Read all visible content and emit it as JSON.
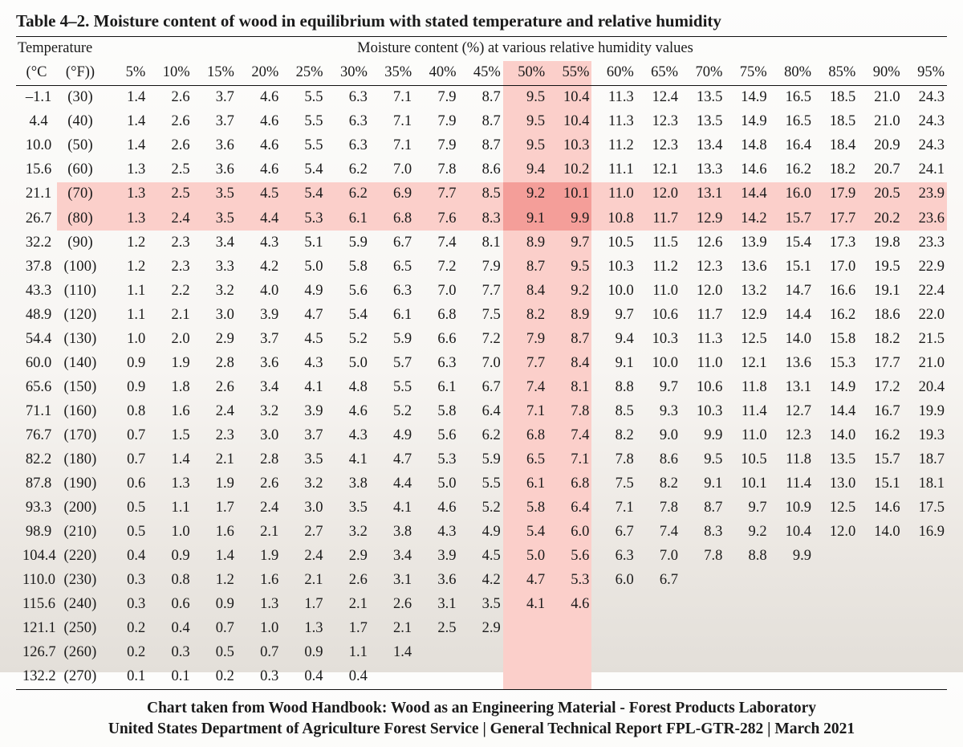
{
  "title": "Table 4–2. Moisture content of wood in equilibrium with stated temperature and relative humidity",
  "header_groups": {
    "temperature": "Temperature",
    "moisture": "Moisture content (%) at various relative humidity values"
  },
  "subheaders": {
    "c": "(°C",
    "f": "(°F))"
  },
  "humidity_labels": [
    "5%",
    "10%",
    "15%",
    "20%",
    "25%",
    "30%",
    "35%",
    "40%",
    "45%",
    "50%",
    "55%",
    "60%",
    "65%",
    "70%",
    "75%",
    "80%",
    "85%",
    "90%",
    "95%"
  ],
  "highlight": {
    "col_indices_light": [
      9,
      10
    ],
    "row_indices_light": [
      4,
      5
    ],
    "light_color": "#fbcfca",
    "dark_color": "#f49e99"
  },
  "rows": [
    {
      "c": "–1.1",
      "f": "(30)",
      "v": [
        "1.4",
        "2.6",
        "3.7",
        "4.6",
        "5.5",
        "6.3",
        "7.1",
        "7.9",
        "8.7",
        "9.5",
        "10.4",
        "11.3",
        "12.4",
        "13.5",
        "14.9",
        "16.5",
        "18.5",
        "21.0",
        "24.3"
      ]
    },
    {
      "c": "4.4",
      "f": "(40)",
      "v": [
        "1.4",
        "2.6",
        "3.7",
        "4.6",
        "5.5",
        "6.3",
        "7.1",
        "7.9",
        "8.7",
        "9.5",
        "10.4",
        "11.3",
        "12.3",
        "13.5",
        "14.9",
        "16.5",
        "18.5",
        "21.0",
        "24.3"
      ]
    },
    {
      "c": "10.0",
      "f": "(50)",
      "v": [
        "1.4",
        "2.6",
        "3.6",
        "4.6",
        "5.5",
        "6.3",
        "7.1",
        "7.9",
        "8.7",
        "9.5",
        "10.3",
        "11.2",
        "12.3",
        "13.4",
        "14.8",
        "16.4",
        "18.4",
        "20.9",
        "24.3"
      ]
    },
    {
      "c": "15.6",
      "f": "(60)",
      "v": [
        "1.3",
        "2.5",
        "3.6",
        "4.6",
        "5.4",
        "6.2",
        "7.0",
        "7.8",
        "8.6",
        "9.4",
        "10.2",
        "11.1",
        "12.1",
        "13.3",
        "14.6",
        "16.2",
        "18.2",
        "20.7",
        "24.1"
      ]
    },
    {
      "c": "21.1",
      "f": "(70)",
      "v": [
        "1.3",
        "2.5",
        "3.5",
        "4.5",
        "5.4",
        "6.2",
        "6.9",
        "7.7",
        "8.5",
        "9.2",
        "10.1",
        "11.0",
        "12.0",
        "13.1",
        "14.4",
        "16.0",
        "17.9",
        "20.5",
        "23.9"
      ]
    },
    {
      "c": "26.7",
      "f": "(80)",
      "v": [
        "1.3",
        "2.4",
        "3.5",
        "4.4",
        "5.3",
        "6.1",
        "6.8",
        "7.6",
        "8.3",
        "9.1",
        "9.9",
        "10.8",
        "11.7",
        "12.9",
        "14.2",
        "15.7",
        "17.7",
        "20.2",
        "23.6"
      ]
    },
    {
      "c": "32.2",
      "f": "(90)",
      "v": [
        "1.2",
        "2.3",
        "3.4",
        "4.3",
        "5.1",
        "5.9",
        "6.7",
        "7.4",
        "8.1",
        "8.9",
        "9.7",
        "10.5",
        "11.5",
        "12.6",
        "13.9",
        "15.4",
        "17.3",
        "19.8",
        "23.3"
      ]
    },
    {
      "c": "37.8",
      "f": "(100)",
      "v": [
        "1.2",
        "2.3",
        "3.3",
        "4.2",
        "5.0",
        "5.8",
        "6.5",
        "7.2",
        "7.9",
        "8.7",
        "9.5",
        "10.3",
        "11.2",
        "12.3",
        "13.6",
        "15.1",
        "17.0",
        "19.5",
        "22.9"
      ]
    },
    {
      "c": "43.3",
      "f": "(110)",
      "v": [
        "1.1",
        "2.2",
        "3.2",
        "4.0",
        "4.9",
        "5.6",
        "6.3",
        "7.0",
        "7.7",
        "8.4",
        "9.2",
        "10.0",
        "11.0",
        "12.0",
        "13.2",
        "14.7",
        "16.6",
        "19.1",
        "22.4"
      ]
    },
    {
      "c": "48.9",
      "f": "(120)",
      "v": [
        "1.1",
        "2.1",
        "3.0",
        "3.9",
        "4.7",
        "5.4",
        "6.1",
        "6.8",
        "7.5",
        "8.2",
        "8.9",
        "9.7",
        "10.6",
        "11.7",
        "12.9",
        "14.4",
        "16.2",
        "18.6",
        "22.0"
      ]
    },
    {
      "c": "54.4",
      "f": "(130)",
      "v": [
        "1.0",
        "2.0",
        "2.9",
        "3.7",
        "4.5",
        "5.2",
        "5.9",
        "6.6",
        "7.2",
        "7.9",
        "8.7",
        "9.4",
        "10.3",
        "11.3",
        "12.5",
        "14.0",
        "15.8",
        "18.2",
        "21.5"
      ]
    },
    {
      "c": "60.0",
      "f": "(140)",
      "v": [
        "0.9",
        "1.9",
        "2.8",
        "3.6",
        "4.3",
        "5.0",
        "5.7",
        "6.3",
        "7.0",
        "7.7",
        "8.4",
        "9.1",
        "10.0",
        "11.0",
        "12.1",
        "13.6",
        "15.3",
        "17.7",
        "21.0"
      ]
    },
    {
      "c": "65.6",
      "f": "(150)",
      "v": [
        "0.9",
        "1.8",
        "2.6",
        "3.4",
        "4.1",
        "4.8",
        "5.5",
        "6.1",
        "6.7",
        "7.4",
        "8.1",
        "8.8",
        "9.7",
        "10.6",
        "11.8",
        "13.1",
        "14.9",
        "17.2",
        "20.4"
      ]
    },
    {
      "c": "71.1",
      "f": "(160)",
      "v": [
        "0.8",
        "1.6",
        "2.4",
        "3.2",
        "3.9",
        "4.6",
        "5.2",
        "5.8",
        "6.4",
        "7.1",
        "7.8",
        "8.5",
        "9.3",
        "10.3",
        "11.4",
        "12.7",
        "14.4",
        "16.7",
        "19.9"
      ]
    },
    {
      "c": "76.7",
      "f": "(170)",
      "v": [
        "0.7",
        "1.5",
        "2.3",
        "3.0",
        "3.7",
        "4.3",
        "4.9",
        "5.6",
        "6.2",
        "6.8",
        "7.4",
        "8.2",
        "9.0",
        "9.9",
        "11.0",
        "12.3",
        "14.0",
        "16.2",
        "19.3"
      ]
    },
    {
      "c": "82.2",
      "f": "(180)",
      "v": [
        "0.7",
        "1.4",
        "2.1",
        "2.8",
        "3.5",
        "4.1",
        "4.7",
        "5.3",
        "5.9",
        "6.5",
        "7.1",
        "7.8",
        "8.6",
        "9.5",
        "10.5",
        "11.8",
        "13.5",
        "15.7",
        "18.7"
      ]
    },
    {
      "c": "87.8",
      "f": "(190)",
      "v": [
        "0.6",
        "1.3",
        "1.9",
        "2.6",
        "3.2",
        "3.8",
        "4.4",
        "5.0",
        "5.5",
        "6.1",
        "6.8",
        "7.5",
        "8.2",
        "9.1",
        "10.1",
        "11.4",
        "13.0",
        "15.1",
        "18.1"
      ]
    },
    {
      "c": "93.3",
      "f": "(200)",
      "v": [
        "0.5",
        "1.1",
        "1.7",
        "2.4",
        "3.0",
        "3.5",
        "4.1",
        "4.6",
        "5.2",
        "5.8",
        "6.4",
        "7.1",
        "7.8",
        "8.7",
        "9.7",
        "10.9",
        "12.5",
        "14.6",
        "17.5"
      ]
    },
    {
      "c": "98.9",
      "f": "(210)",
      "v": [
        "0.5",
        "1.0",
        "1.6",
        "2.1",
        "2.7",
        "3.2",
        "3.8",
        "4.3",
        "4.9",
        "5.4",
        "6.0",
        "6.7",
        "7.4",
        "8.3",
        "9.2",
        "10.4",
        "12.0",
        "14.0",
        "16.9"
      ]
    },
    {
      "c": "104.4",
      "f": "(220)",
      "v": [
        "0.4",
        "0.9",
        "1.4",
        "1.9",
        "2.4",
        "2.9",
        "3.4",
        "3.9",
        "4.5",
        "5.0",
        "5.6",
        "6.3",
        "7.0",
        "7.8",
        "8.8",
        "9.9",
        "",
        "",
        ""
      ]
    },
    {
      "c": "110.0",
      "f": "(230)",
      "v": [
        "0.3",
        "0.8",
        "1.2",
        "1.6",
        "2.1",
        "2.6",
        "3.1",
        "3.6",
        "4.2",
        "4.7",
        "5.3",
        "6.0",
        "6.7",
        "",
        "",
        "",
        "",
        "",
        ""
      ]
    },
    {
      "c": "115.6",
      "f": "(240)",
      "v": [
        "0.3",
        "0.6",
        "0.9",
        "1.3",
        "1.7",
        "2.1",
        "2.6",
        "3.1",
        "3.5",
        "4.1",
        "4.6",
        "",
        "",
        "",
        "",
        "",
        "",
        "",
        ""
      ]
    },
    {
      "c": "121.1",
      "f": "(250)",
      "v": [
        "0.2",
        "0.4",
        "0.7",
        "1.0",
        "1.3",
        "1.7",
        "2.1",
        "2.5",
        "2.9",
        "",
        "",
        "",
        "",
        "",
        "",
        "",
        "",
        "",
        ""
      ]
    },
    {
      "c": "126.7",
      "f": "(260)",
      "v": [
        "0.2",
        "0.3",
        "0.5",
        "0.7",
        "0.9",
        "1.1",
        "1.4",
        "",
        "",
        "",
        "",
        "",
        "",
        "",
        "",
        "",
        "",
        "",
        ""
      ]
    },
    {
      "c": "132.2",
      "f": "(270)",
      "v": [
        "0.1",
        "0.1",
        "0.2",
        "0.3",
        "0.4",
        "0.4",
        "",
        "",
        "",
        "",
        "",
        "",
        "",
        "",
        "",
        "",
        "",
        "",
        ""
      ]
    }
  ],
  "footer": {
    "line1": "Chart taken from Wood Handbook: Wood as an Engineering Material - Forest Products Laboratory",
    "line2": "United States Department of Agriculture Forest Service | General Technical Report FPL-GTR-282 | March 2021"
  },
  "style": {
    "font_family": "Times New Roman",
    "title_fontsize_pt": 16,
    "body_fontsize_pt": 14,
    "footer_fontsize_pt": 15,
    "rule_color": "#111111",
    "bg_gradient_top": "#fdfdfc",
    "bg_gradient_bottom": "#e3dfd9",
    "text_color": "#1a1a1a"
  }
}
